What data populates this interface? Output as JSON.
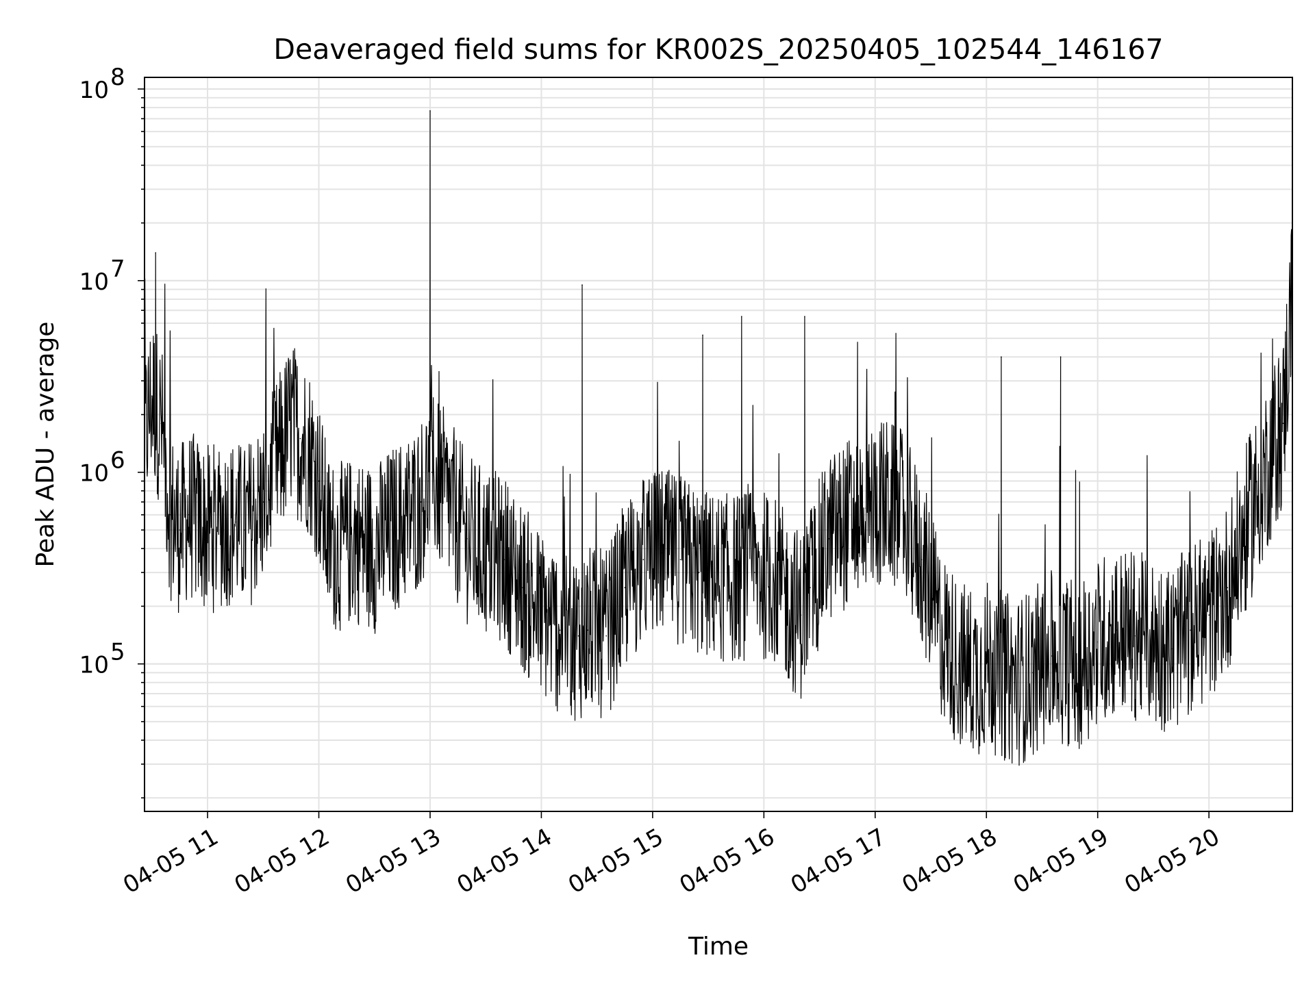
{
  "chart_data": {
    "type": "line",
    "title": "Deaveraged field sums for KR002S_20250405_102544_146167",
    "xlabel": "Time",
    "ylabel": "Peak ADU - average",
    "xscale": "time",
    "yscale": "log",
    "xlim": [
      "2025-04-05 10:26",
      "2025-04-05 20:45"
    ],
    "ylim": [
      17000,
      115000000
    ],
    "grid": true,
    "line_color": "#000000",
    "grid_color": "#e3e3e3",
    "x_ticks": [
      {
        "label": "04-05 11",
        "t": "2025-04-05 11:00"
      },
      {
        "label": "04-05 12",
        "t": "2025-04-05 12:00"
      },
      {
        "label": "04-05 13",
        "t": "2025-04-05 13:00"
      },
      {
        "label": "04-05 14",
        "t": "2025-04-05 14:00"
      },
      {
        "label": "04-05 15",
        "t": "2025-04-05 15:00"
      },
      {
        "label": "04-05 16",
        "t": "2025-04-05 16:00"
      },
      {
        "label": "04-05 17",
        "t": "2025-04-05 17:00"
      },
      {
        "label": "04-05 18",
        "t": "2025-04-05 18:00"
      },
      {
        "label": "04-05 19",
        "t": "2025-04-05 19:00"
      },
      {
        "label": "04-05 20",
        "t": "2025-04-05 20:00"
      }
    ],
    "y_ticks": [
      {
        "base": "10",
        "exp": "5",
        "value": 100000
      },
      {
        "base": "10",
        "exp": "6",
        "value": 1000000
      },
      {
        "base": "10",
        "exp": "7",
        "value": 10000000
      },
      {
        "base": "10",
        "exp": "8",
        "value": 100000000
      }
    ],
    "series": [
      {
        "points": [
          [
            "2025-04-05 10:26",
            1500000
          ],
          [
            "2025-04-05 10:30",
            2500000
          ],
          [
            "2025-04-05 10:32",
            14000000
          ],
          [
            "2025-04-05 10:35",
            1800000
          ],
          [
            "2025-04-05 10:40",
            600000
          ],
          [
            "2025-04-05 10:45",
            500000
          ],
          [
            "2025-04-05 10:50",
            600000
          ],
          [
            "2025-04-05 10:55",
            550000
          ],
          [
            "2025-04-05 11:00",
            500000
          ],
          [
            "2025-04-05 11:10",
            550000
          ],
          [
            "2025-04-05 11:15",
            550000
          ],
          [
            "2025-04-05 11:20",
            500000
          ],
          [
            "2025-04-05 11:30",
            700000
          ],
          [
            "2025-04-05 11:40",
            1300000
          ],
          [
            "2025-04-05 11:45",
            1800000
          ],
          [
            "2025-04-05 11:50",
            1500000
          ],
          [
            "2025-04-05 11:55",
            1300000
          ],
          [
            "2025-04-05 12:00",
            900000
          ],
          [
            "2025-04-05 12:05",
            450000
          ],
          [
            "2025-04-05 12:10",
            400000
          ],
          [
            "2025-04-05 12:20",
            450000
          ],
          [
            "2025-04-05 12:30",
            400000
          ],
          [
            "2025-04-05 12:40",
            500000
          ],
          [
            "2025-04-05 12:50",
            600000
          ],
          [
            "2025-04-05 12:55",
            700000
          ],
          [
            "2025-04-05 12:59",
            900000
          ],
          [
            "2025-04-05 13:00",
            77000000
          ],
          [
            "2025-04-05 13:01",
            1000000
          ],
          [
            "2025-04-05 13:10",
            700000
          ],
          [
            "2025-04-05 13:20",
            450000
          ],
          [
            "2025-04-05 13:30",
            380000
          ],
          [
            "2025-04-05 13:40",
            350000
          ],
          [
            "2025-04-05 13:50",
            250000
          ],
          [
            "2025-04-05 14:00",
            180000
          ],
          [
            "2025-04-05 14:10",
            150000
          ],
          [
            "2025-04-05 14:20",
            140000
          ],
          [
            "2025-04-05 14:22",
            9500000
          ],
          [
            "2025-04-05 14:25",
            150000
          ],
          [
            "2025-04-05 14:35",
            140000
          ],
          [
            "2025-04-05 14:45",
            250000
          ],
          [
            "2025-04-05 14:55",
            350000
          ],
          [
            "2025-04-05 15:05",
            380000
          ],
          [
            "2025-04-05 15:15",
            350000
          ],
          [
            "2025-04-05 15:25",
            300000
          ],
          [
            "2025-04-05 15:27",
            5200000
          ],
          [
            "2025-04-05 15:35",
            280000
          ],
          [
            "2025-04-05 15:45",
            280000
          ],
          [
            "2025-04-05 15:48",
            6500000
          ],
          [
            "2025-04-05 15:55",
            300000
          ],
          [
            "2025-04-05 16:05",
            280000
          ],
          [
            "2025-04-05 16:15",
            200000
          ],
          [
            "2025-04-05 16:20",
            180000
          ],
          [
            "2025-04-05 16:22",
            6500000
          ],
          [
            "2025-04-05 16:25",
            250000
          ],
          [
            "2025-04-05 16:35",
            450000
          ],
          [
            "2025-04-05 16:45",
            550000
          ],
          [
            "2025-04-05 16:55",
            650000
          ],
          [
            "2025-04-05 17:05",
            700000
          ],
          [
            "2025-04-05 17:15",
            600000
          ],
          [
            "2025-04-05 17:25",
            350000
          ],
          [
            "2025-04-05 17:35",
            150000
          ],
          [
            "2025-04-05 17:45",
            100000
          ],
          [
            "2025-04-05 17:55",
            90000
          ],
          [
            "2025-04-05 18:00",
            100000
          ],
          [
            "2025-04-05 18:08",
            4000000
          ],
          [
            "2025-04-05 18:15",
            80000
          ],
          [
            "2025-04-05 18:25",
            90000
          ],
          [
            "2025-04-05 18:35",
            110000
          ],
          [
            "2025-04-05 18:40",
            4000000
          ],
          [
            "2025-04-05 18:50",
            100000
          ],
          [
            "2025-04-05 19:00",
            130000
          ],
          [
            "2025-04-05 19:10",
            150000
          ],
          [
            "2025-04-05 19:20",
            140000
          ],
          [
            "2025-04-05 19:30",
            130000
          ],
          [
            "2025-04-05 19:40",
            120000
          ],
          [
            "2025-04-05 19:50",
            150000
          ],
          [
            "2025-04-05 20:00",
            180000
          ],
          [
            "2025-04-05 20:10",
            250000
          ],
          [
            "2025-04-05 20:20",
            500000
          ],
          [
            "2025-04-05 20:30",
            1000000
          ],
          [
            "2025-04-05 20:40",
            1800000
          ],
          [
            "2025-04-05 20:45",
            9000000
          ]
        ]
      }
    ]
  }
}
